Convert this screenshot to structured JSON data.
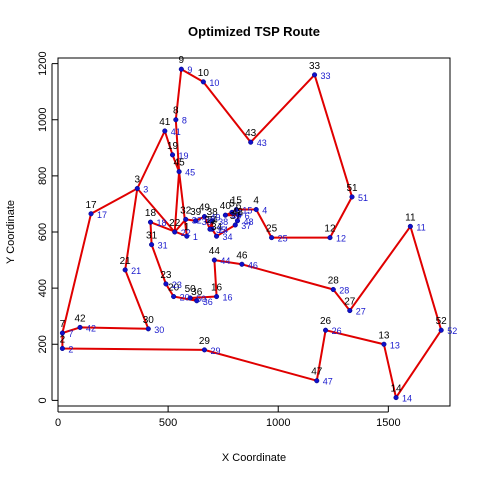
{
  "chart_data": {
    "type": "scatter",
    "title": "Optimized TSP Route",
    "xlabel": "X Coordinate",
    "ylabel": "Y Coordinate",
    "xlim": [
      0,
      1780
    ],
    "ylim": [
      -20,
      1220
    ],
    "xticks": [
      0,
      500,
      1000,
      1500
    ],
    "yticks": [
      0,
      200,
      400,
      600,
      800,
      1000,
      1200
    ],
    "grid": false,
    "colors": {
      "route": "#e00000",
      "point": "#1010c8",
      "label_blue": "#1a1acd",
      "label_black": "#000000"
    },
    "points": [
      {
        "id": "1",
        "x": 585,
        "y": 585
      },
      {
        "id": "2",
        "x": 20,
        "y": 185
      },
      {
        "id": "3",
        "x": 360,
        "y": 755
      },
      {
        "id": "4",
        "x": 900,
        "y": 680
      },
      {
        "id": "5",
        "x": 790,
        "y": 670
      },
      {
        "id": "6",
        "x": 820,
        "y": 660
      },
      {
        "id": "7",
        "x": 20,
        "y": 240
      },
      {
        "id": "8",
        "x": 535,
        "y": 1000
      },
      {
        "id": "9",
        "x": 560,
        "y": 1180
      },
      {
        "id": "10",
        "x": 660,
        "y": 1135
      },
      {
        "id": "11",
        "x": 1600,
        "y": 620
      },
      {
        "id": "12",
        "x": 1235,
        "y": 580
      },
      {
        "id": "13",
        "x": 1480,
        "y": 200
      },
      {
        "id": "14",
        "x": 1535,
        "y": 10
      },
      {
        "id": "15",
        "x": 810,
        "y": 680
      },
      {
        "id": "16",
        "x": 720,
        "y": 370
      },
      {
        "id": "17",
        "x": 150,
        "y": 665
      },
      {
        "id": "18",
        "x": 420,
        "y": 635
      },
      {
        "id": "19",
        "x": 520,
        "y": 875
      },
      {
        "id": "20",
        "x": 525,
        "y": 370
      },
      {
        "id": "21",
        "x": 305,
        "y": 465
      },
      {
        "id": "22",
        "x": 530,
        "y": 600
      },
      {
        "id": "23",
        "x": 490,
        "y": 415
      },
      {
        "id": "24",
        "x": 700,
        "y": 610
      },
      {
        "id": "25",
        "x": 970,
        "y": 580
      },
      {
        "id": "26",
        "x": 1215,
        "y": 250
      },
      {
        "id": "27",
        "x": 1325,
        "y": 320
      },
      {
        "id": "28",
        "x": 1250,
        "y": 395
      },
      {
        "id": "29",
        "x": 665,
        "y": 180
      },
      {
        "id": "30",
        "x": 410,
        "y": 255
      },
      {
        "id": "31",
        "x": 425,
        "y": 555
      },
      {
        "id": "32",
        "x": 580,
        "y": 645
      },
      {
        "id": "33",
        "x": 1165,
        "y": 1160
      },
      {
        "id": "34",
        "x": 720,
        "y": 585
      },
      {
        "id": "35",
        "x": 690,
        "y": 610
      },
      {
        "id": "36",
        "x": 630,
        "y": 355
      },
      {
        "id": "37",
        "x": 805,
        "y": 625
      },
      {
        "id": "38",
        "x": 700,
        "y": 640
      },
      {
        "id": "39",
        "x": 625,
        "y": 640
      },
      {
        "id": "40",
        "x": 760,
        "y": 660
      },
      {
        "id": "41",
        "x": 485,
        "y": 960
      },
      {
        "id": "42",
        "x": 100,
        "y": 260
      },
      {
        "id": "43",
        "x": 875,
        "y": 920
      },
      {
        "id": "44",
        "x": 710,
        "y": 500
      },
      {
        "id": "45",
        "x": 550,
        "y": 815
      },
      {
        "id": "46",
        "x": 835,
        "y": 485
      },
      {
        "id": "47",
        "x": 1175,
        "y": 70
      },
      {
        "id": "48",
        "x": 815,
        "y": 640
      },
      {
        "id": "49",
        "x": 665,
        "y": 655
      },
      {
        "id": "50",
        "x": 600,
        "y": 365
      },
      {
        "id": "51",
        "x": 1335,
        "y": 725
      },
      {
        "id": "52",
        "x": 1740,
        "y": 250
      }
    ],
    "route": [
      "7",
      "42",
      "30",
      "21",
      "3",
      "41",
      "19",
      "45",
      "1",
      "18",
      "31",
      "23",
      "20",
      "36",
      "50",
      "16",
      "44",
      "46",
      "28",
      "27",
      "11",
      "52",
      "14",
      "13",
      "26",
      "47",
      "29",
      "2",
      "7",
      "17",
      "3",
      "22",
      "32",
      "39",
      "49",
      "35",
      "38",
      "24",
      "34",
      "37",
      "48",
      "6",
      "40",
      "5",
      "15",
      "4",
      "25",
      "12",
      "51",
      "33",
      "43",
      "10",
      "9",
      "8",
      "45",
      "22"
    ]
  }
}
